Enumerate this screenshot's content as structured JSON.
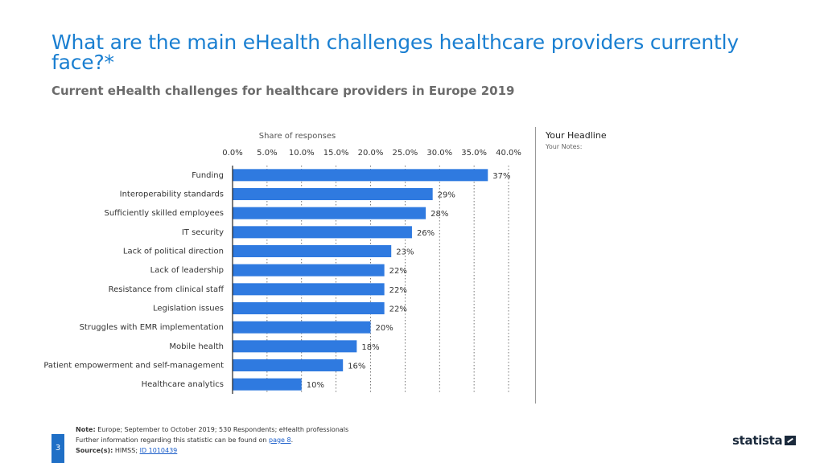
{
  "header": {
    "title": "What are the main eHealth challenges healthcare providers currently face?*",
    "subtitle": "Current eHealth challenges for healthcare providers in Europe 2019"
  },
  "sidebar": {
    "headline": "Your Headline",
    "notes": "Your Notes:"
  },
  "footer": {
    "note_label": "Note:",
    "note_text": "Europe; September to October 2019; 530 Respondents; eHealth professionals",
    "further_text": "Further information regarding this statistic can be found on",
    "page_link": "page 8",
    "source_label": "Source(s):",
    "source_text": "HIMSS;",
    "source_id": "ID 1010439",
    "page_number": "3",
    "brand": "statista"
  },
  "colors": {
    "bar": "#2f7ae0",
    "title": "#1a7fd1"
  },
  "chart_data": {
    "type": "bar",
    "orientation": "horizontal",
    "title": "Current eHealth challenges for healthcare providers in Europe 2019",
    "xlabel": "Share of responses",
    "ylabel": "",
    "xlim": [
      0,
      40
    ],
    "ticks": [
      "0.0%",
      "5.0%",
      "10.0%",
      "15.0%",
      "20.0%",
      "25.0%",
      "30.0%",
      "35.0%",
      "40.0%"
    ],
    "tick_values": [
      0,
      5,
      10,
      15,
      20,
      25,
      30,
      35,
      40
    ],
    "categories": [
      "Funding",
      "Interoperability standards",
      "Sufficiently skilled employees",
      "IT security",
      "Lack of political direction",
      "Lack of leadership",
      "Resistance from clinical staff",
      "Legislation issues",
      "Struggles with EMR implementation",
      "Mobile health",
      "Patient empowerment and self-management",
      "Healthcare analytics"
    ],
    "values": [
      37,
      29,
      28,
      26,
      23,
      22,
      22,
      22,
      20,
      18,
      16,
      10
    ],
    "labels": [
      "37%",
      "29%",
      "28%",
      "26%",
      "23%",
      "22%",
      "22%",
      "22%",
      "20%",
      "18%",
      "16%",
      "10%"
    ],
    "grid": true
  }
}
